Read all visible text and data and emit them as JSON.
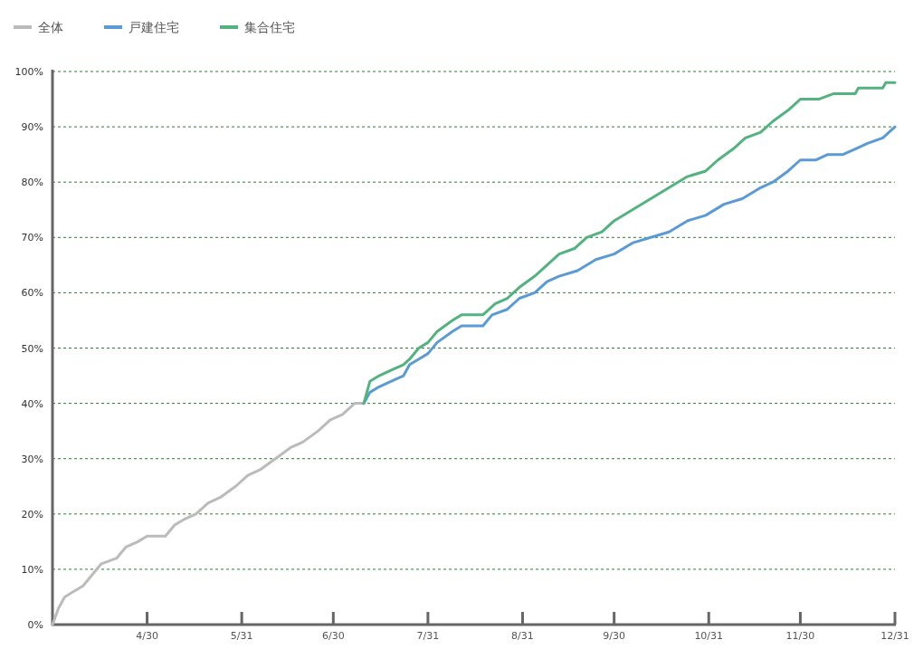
{
  "chart_data": {
    "type": "line",
    "legend": "top left",
    "grid": "y",
    "marker": "none",
    "line_style": "solid",
    "xlim": [
      "--03-30",
      "--12-31"
    ],
    "xticks": [
      {
        "value": "--04-30",
        "label": "4/30"
      },
      {
        "value": "--05-31",
        "label": "5/31"
      },
      {
        "value": "--06-30",
        "label": "6/30"
      },
      {
        "value": "--07-31",
        "label": "7/31"
      },
      {
        "value": "--08-31",
        "label": "8/31"
      },
      {
        "value": "--09-30",
        "label": "9/30"
      },
      {
        "value": "--10-31",
        "label": "10/31"
      },
      {
        "value": "--11-30",
        "label": "11/30"
      },
      {
        "value": "--12-31",
        "label": "12/31"
      }
    ],
    "ylim": [
      0,
      100
    ],
    "yticks": [
      {
        "value": 0,
        "label": "0%"
      },
      {
        "value": 10,
        "label": "10%"
      },
      {
        "value": 20,
        "label": "20%"
      },
      {
        "value": 30,
        "label": "30%"
      },
      {
        "value": 40,
        "label": "40%"
      },
      {
        "value": 50,
        "label": "50%"
      },
      {
        "value": 60,
        "label": "60%"
      },
      {
        "value": 70,
        "label": "70%"
      },
      {
        "value": 80,
        "label": "80%"
      },
      {
        "value": 90,
        "label": "90%"
      },
      {
        "value": 100,
        "label": "100%"
      }
    ],
    "series": [
      {
        "name": "全体",
        "color": "#bbbbbb",
        "x": [
          "--03-30",
          "--04-01",
          "--04-03",
          "--04-06",
          "--04-09",
          "--04-12",
          "--04-15",
          "--04-20",
          "--04-23",
          "--04-27",
          "--04-30",
          "--05-06",
          "--05-09",
          "--05-12",
          "--05-16",
          "--05-20",
          "--05-24",
          "--05-29",
          "--06-02",
          "--06-06",
          "--06-11",
          "--06-16",
          "--06-20",
          "--06-25",
          "--06-29",
          "--07-03",
          "--07-07",
          "--07-10"
        ],
        "values": [
          0,
          3,
          5,
          6,
          7,
          9,
          11,
          12,
          14,
          15,
          16,
          16,
          18,
          19,
          20,
          22,
          23,
          25,
          27,
          28,
          30,
          32,
          33,
          35,
          37,
          38,
          40,
          40
        ]
      },
      {
        "name": "戸建住宅",
        "color": "#5b9bd5",
        "x": [
          "--07-10",
          "--07-12",
          "--07-15",
          "--07-19",
          "--07-23",
          "--07-25",
          "--07-28",
          "--07-31",
          "--08-03",
          "--08-08",
          "--08-11",
          "--08-18",
          "--08-21",
          "--08-26",
          "--08-30",
          "--09-04",
          "--09-08",
          "--09-12",
          "--09-18",
          "--09-24",
          "--09-30",
          "--10-06",
          "--10-12",
          "--10-18",
          "--10-24",
          "--10-30",
          "--11-05",
          "--11-11",
          "--11-17",
          "--11-21",
          "--11-26",
          "--11-30",
          "--12-05",
          "--12-09",
          "--12-14",
          "--12-18",
          "--12-22",
          "--12-27",
          "--12-31"
        ],
        "values": [
          40,
          42,
          43,
          44,
          45,
          47,
          48,
          49,
          51,
          53,
          54,
          54,
          56,
          57,
          59,
          60,
          62,
          63,
          64,
          66,
          67,
          69,
          70,
          71,
          73,
          74,
          76,
          77,
          79,
          80,
          82,
          84,
          84,
          85,
          85,
          86,
          87,
          88,
          90
        ]
      },
      {
        "name": "集合住宅",
        "color": "#52b37f",
        "x": [
          "--07-10",
          "--07-12",
          "--07-15",
          "--07-19",
          "--07-23",
          "--07-25",
          "--07-28",
          "--07-31",
          "--08-03",
          "--08-08",
          "--08-11",
          "--08-18",
          "--08-22",
          "--08-26",
          "--08-30",
          "--09-04",
          "--09-08",
          "--09-12",
          "--09-17",
          "--09-21",
          "--09-26",
          "--09-30",
          "--10-06",
          "--10-12",
          "--10-18",
          "--10-24",
          "--10-30",
          "--11-03",
          "--11-08",
          "--11-12",
          "--11-17",
          "--11-21",
          "--11-26",
          "--11-30",
          "--12-06",
          "--12-11",
          "--12-18",
          "--12-19",
          "--12-27",
          "--12-28",
          "--12-31"
        ],
        "values": [
          40,
          44,
          45,
          46,
          47,
          48,
          50,
          51,
          53,
          55,
          56,
          56,
          58,
          59,
          61,
          63,
          65,
          67,
          68,
          70,
          71,
          73,
          75,
          77,
          79,
          81,
          82,
          84,
          86,
          88,
          89,
          91,
          93,
          95,
          95,
          96,
          96,
          97,
          97,
          98,
          98
        ]
      }
    ]
  }
}
